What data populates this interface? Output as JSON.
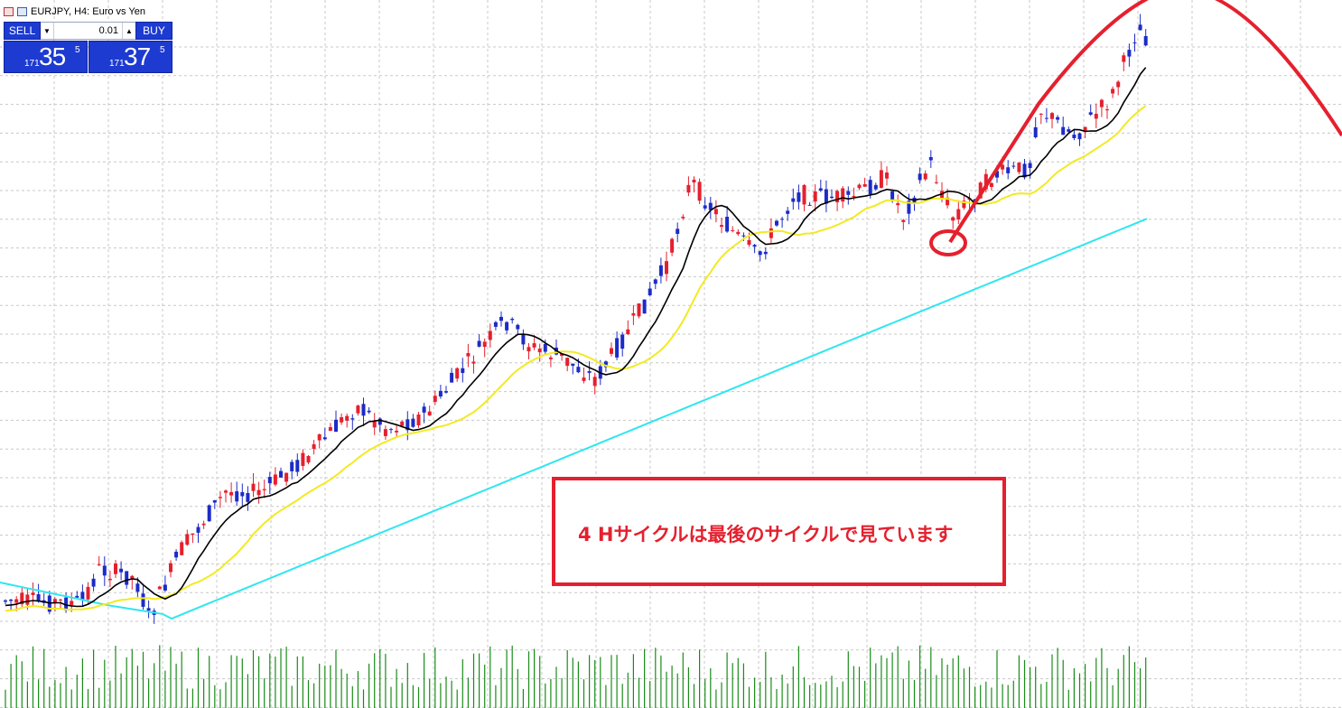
{
  "window": {
    "title": "EURJPY, H4:  Euro vs Yen"
  },
  "trade_panel": {
    "sell_label": "SELL",
    "buy_label": "BUY",
    "lot": "0.01",
    "sell_price": {
      "prefix": "171",
      "big": "35",
      "sup": "5"
    },
    "buy_price": {
      "prefix": "171",
      "big": "37",
      "sup": "5"
    }
  },
  "annotation": {
    "text": "4 Hサイクルは最後のサイクルで見ています",
    "color": "#e5202e"
  },
  "colors": {
    "bull_candle": "#e5202e",
    "bear_candle": "#1c2bc7",
    "ma_fast": "#000000",
    "ma_mid": "#f2ea23",
    "ma_slow": "#2fe6ef",
    "volume": "#198c19",
    "grid": "#c8c8c8",
    "cycle_arc": "#e5202e"
  },
  "icons": [
    "chart-window-icon",
    "symbol-icon"
  ]
}
